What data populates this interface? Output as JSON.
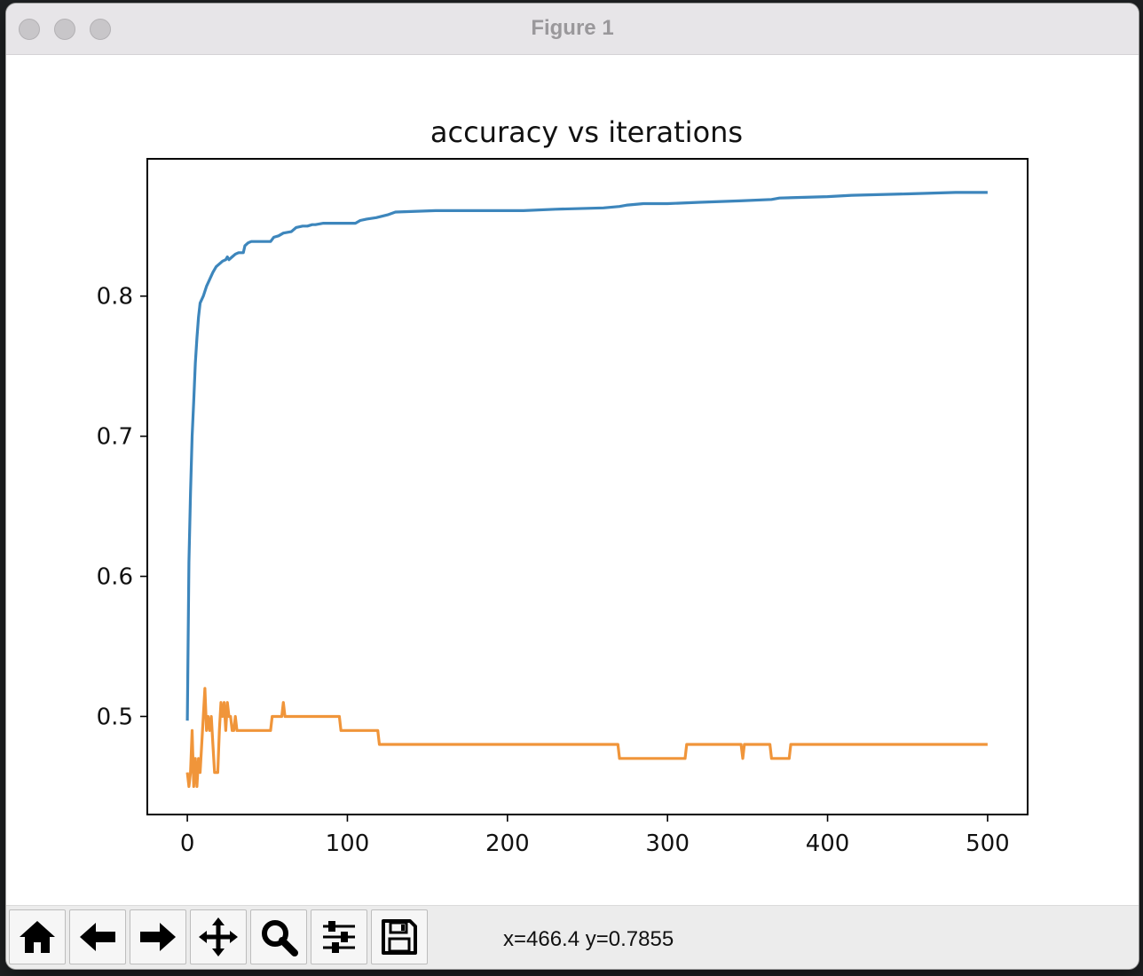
{
  "window": {
    "title": "Figure 1"
  },
  "toolbar": {
    "buttons": [
      {
        "name": "home-button",
        "icon": "home-icon"
      },
      {
        "name": "back-button",
        "icon": "arrow-left-icon"
      },
      {
        "name": "forward-button",
        "icon": "arrow-right-icon"
      },
      {
        "name": "pan-button",
        "icon": "move-icon"
      },
      {
        "name": "zoom-button",
        "icon": "zoom-icon"
      },
      {
        "name": "configure-subplots-button",
        "icon": "sliders-icon"
      },
      {
        "name": "save-button",
        "icon": "save-icon"
      }
    ],
    "coordinates": "x=466.4 y=0.7855"
  },
  "chart_data": {
    "type": "line",
    "title": "accuracy vs iterations",
    "xlabel": "",
    "ylabel": "",
    "xlim": [
      -25,
      525
    ],
    "ylim": [
      0.43,
      0.898
    ],
    "xticks": [
      0,
      100,
      200,
      300,
      400,
      500
    ],
    "yticks": [
      0.5,
      0.6,
      0.7,
      0.8
    ],
    "ytick_labels": [
      "0.5",
      "0.6",
      "0.7",
      "0.8"
    ],
    "grid": false,
    "colors": [
      "#3d86bc",
      "#f0953a"
    ],
    "series": [
      {
        "color": "#3d86bc",
        "points": [
          [
            0,
            0.497
          ],
          [
            1,
            0.61
          ],
          [
            2,
            0.66
          ],
          [
            3,
            0.7
          ],
          [
            4,
            0.725
          ],
          [
            5,
            0.752
          ],
          [
            6,
            0.77
          ],
          [
            7,
            0.785
          ],
          [
            8,
            0.795
          ],
          [
            10,
            0.8
          ],
          [
            12,
            0.807
          ],
          [
            14,
            0.812
          ],
          [
            16,
            0.817
          ],
          [
            18,
            0.821
          ],
          [
            20,
            0.823
          ],
          [
            22,
            0.825
          ],
          [
            24,
            0.826
          ],
          [
            25,
            0.828
          ],
          [
            26,
            0.826
          ],
          [
            28,
            0.828
          ],
          [
            30,
            0.83
          ],
          [
            32,
            0.831
          ],
          [
            35,
            0.831
          ],
          [
            36,
            0.836
          ],
          [
            38,
            0.838
          ],
          [
            40,
            0.839
          ],
          [
            52,
            0.839
          ],
          [
            54,
            0.842
          ],
          [
            57,
            0.843
          ],
          [
            60,
            0.845
          ],
          [
            65,
            0.846
          ],
          [
            68,
            0.849
          ],
          [
            72,
            0.85
          ],
          [
            75,
            0.85
          ],
          [
            78,
            0.851
          ],
          [
            80,
            0.851
          ],
          [
            85,
            0.852
          ],
          [
            105,
            0.852
          ],
          [
            108,
            0.854
          ],
          [
            112,
            0.855
          ],
          [
            118,
            0.856
          ],
          [
            125,
            0.858
          ],
          [
            130,
            0.86
          ],
          [
            155,
            0.861
          ],
          [
            210,
            0.861
          ],
          [
            230,
            0.862
          ],
          [
            260,
            0.863
          ],
          [
            270,
            0.864
          ],
          [
            275,
            0.865
          ],
          [
            285,
            0.866
          ],
          [
            300,
            0.866
          ],
          [
            320,
            0.867
          ],
          [
            345,
            0.868
          ],
          [
            365,
            0.869
          ],
          [
            370,
            0.87
          ],
          [
            400,
            0.871
          ],
          [
            415,
            0.872
          ],
          [
            450,
            0.873
          ],
          [
            480,
            0.874
          ],
          [
            500,
            0.874
          ]
        ]
      },
      {
        "color": "#f0953a",
        "points": [
          [
            0,
            0.46
          ],
          [
            1,
            0.45
          ],
          [
            2,
            0.46
          ],
          [
            3,
            0.49
          ],
          [
            4,
            0.45
          ],
          [
            5,
            0.47
          ],
          [
            6,
            0.45
          ],
          [
            7,
            0.47
          ],
          [
            8,
            0.46
          ],
          [
            9,
            0.48
          ],
          [
            10,
            0.5
          ],
          [
            11,
            0.52
          ],
          [
            12,
            0.49
          ],
          [
            13,
            0.5
          ],
          [
            14,
            0.49
          ],
          [
            15,
            0.5
          ],
          [
            16,
            0.48
          ],
          [
            17,
            0.46
          ],
          [
            18,
            0.46
          ],
          [
            19,
            0.46
          ],
          [
            20,
            0.49
          ],
          [
            21,
            0.51
          ],
          [
            22,
            0.5
          ],
          [
            23,
            0.51
          ],
          [
            24,
            0.49
          ],
          [
            25,
            0.51
          ],
          [
            26,
            0.5
          ],
          [
            27,
            0.5
          ],
          [
            28,
            0.49
          ],
          [
            29,
            0.49
          ],
          [
            30,
            0.5
          ],
          [
            31,
            0.49
          ],
          [
            52,
            0.49
          ],
          [
            53,
            0.5
          ],
          [
            59,
            0.5
          ],
          [
            60,
            0.51
          ],
          [
            61,
            0.5
          ],
          [
            95,
            0.5
          ],
          [
            96,
            0.49
          ],
          [
            119,
            0.49
          ],
          [
            120,
            0.48
          ],
          [
            269,
            0.48
          ],
          [
            270,
            0.47
          ],
          [
            311,
            0.47
          ],
          [
            312,
            0.48
          ],
          [
            346,
            0.48
          ],
          [
            347,
            0.47
          ],
          [
            348,
            0.48
          ],
          [
            364,
            0.48
          ],
          [
            365,
            0.47
          ],
          [
            376,
            0.47
          ],
          [
            377,
            0.48
          ],
          [
            500,
            0.48
          ]
        ]
      }
    ]
  }
}
